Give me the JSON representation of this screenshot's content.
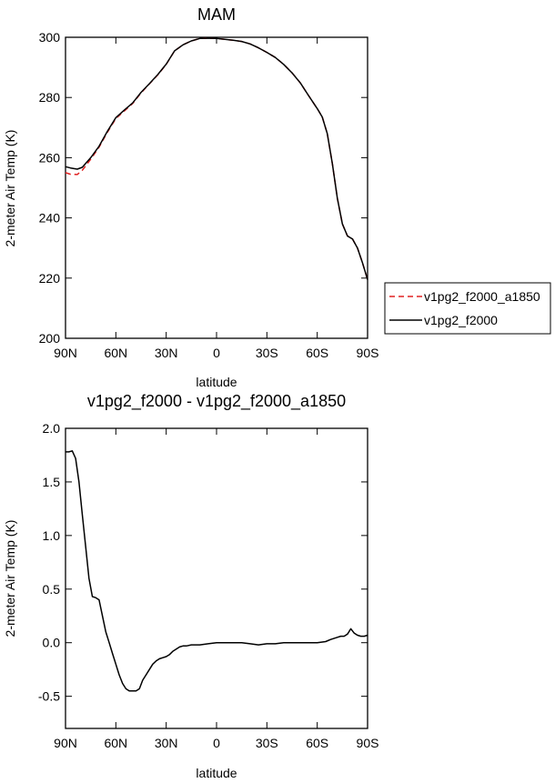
{
  "chart_data": [
    {
      "type": "line",
      "title": "MAM",
      "xlabel": "latitude",
      "ylabel": "2-meter Air Temp (K)",
      "xlim": [
        90,
        -90
      ],
      "ylim": [
        200,
        300
      ],
      "xticks": [
        90,
        60,
        30,
        0,
        -30,
        -60,
        -90
      ],
      "xtick_labels": [
        "90N",
        "60N",
        "30N",
        "0",
        "30S",
        "60S",
        "90S"
      ],
      "yticks": [
        200,
        220,
        240,
        260,
        280,
        300
      ],
      "ytick_labels": [
        "200",
        "220",
        "240",
        "260",
        "280",
        "300"
      ],
      "legend_position": "right",
      "series": [
        {
          "name": "v1pg2_f2000_a1850",
          "color": "#e02020",
          "style": "dashed",
          "points": [
            [
              90,
              255.0
            ],
            [
              87,
              254.5
            ],
            [
              83,
              254.4
            ],
            [
              80,
              255.8
            ],
            [
              75,
              259.5
            ],
            [
              70,
              263.5
            ],
            [
              65,
              268.5
            ],
            [
              60,
              273.0
            ],
            [
              55,
              275.5
            ],
            [
              50,
              278.0
            ],
            [
              45,
              281.5
            ],
            [
              40,
              284.5
            ],
            [
              35,
              287.5
            ],
            [
              30,
              291.0
            ],
            [
              25,
              295.5
            ],
            [
              20,
              297.5
            ],
            [
              15,
              298.8
            ],
            [
              10,
              299.6
            ],
            [
              5,
              299.7
            ],
            [
              0,
              299.6
            ],
            [
              -5,
              299.3
            ],
            [
              -10,
              299.0
            ],
            [
              -15,
              298.6
            ],
            [
              -20,
              297.8
            ],
            [
              -25,
              296.5
            ],
            [
              -30,
              295.0
            ],
            [
              -35,
              293.3
            ],
            [
              -40,
              291.0
            ],
            [
              -45,
              288.2
            ],
            [
              -50,
              284.8
            ],
            [
              -55,
              280.5
            ],
            [
              -60,
              276.3
            ],
            [
              -63,
              273.5
            ],
            [
              -66,
              268.0
            ],
            [
              -69,
              258.0
            ],
            [
              -72,
              246.5
            ],
            [
              -75,
              238.0
            ],
            [
              -78,
              234.0
            ],
            [
              -81,
              233.0
            ],
            [
              -84,
              230.0
            ],
            [
              -87,
              225.0
            ],
            [
              -90,
              219.5
            ]
          ]
        },
        {
          "name": "v1pg2_f2000",
          "color": "#000000",
          "style": "solid",
          "points": [
            [
              90,
              257.0
            ],
            [
              87,
              256.6
            ],
            [
              83,
              256.2
            ],
            [
              80,
              256.8
            ],
            [
              75,
              260.0
            ],
            [
              70,
              263.8
            ],
            [
              65,
              268.8
            ],
            [
              60,
              273.3
            ],
            [
              55,
              275.8
            ],
            [
              50,
              278.2
            ],
            [
              45,
              281.7
            ],
            [
              40,
              284.6
            ],
            [
              35,
              287.6
            ],
            [
              30,
              291.1
            ],
            [
              25,
              295.5
            ],
            [
              20,
              297.5
            ],
            [
              15,
              298.8
            ],
            [
              10,
              299.6
            ],
            [
              5,
              299.7
            ],
            [
              0,
              299.6
            ],
            [
              -5,
              299.3
            ],
            [
              -10,
              299.0
            ],
            [
              -15,
              298.6
            ],
            [
              -20,
              297.8
            ],
            [
              -25,
              296.5
            ],
            [
              -30,
              295.0
            ],
            [
              -35,
              293.3
            ],
            [
              -40,
              291.0
            ],
            [
              -45,
              288.2
            ],
            [
              -50,
              284.8
            ],
            [
              -55,
              280.5
            ],
            [
              -60,
              276.3
            ],
            [
              -63,
              273.5
            ],
            [
              -66,
              268.0
            ],
            [
              -69,
              258.0
            ],
            [
              -72,
              246.5
            ],
            [
              -75,
              238.0
            ],
            [
              -78,
              234.0
            ],
            [
              -81,
              233.0
            ],
            [
              -84,
              230.0
            ],
            [
              -87,
              225.0
            ],
            [
              -90,
              219.5
            ]
          ]
        }
      ]
    },
    {
      "type": "line",
      "title": "v1pg2_f2000 - v1pg2_f2000_a1850",
      "xlabel": "latitude",
      "ylabel": "2-meter Air Temp (K)",
      "xlim": [
        90,
        -90
      ],
      "ylim": [
        -0.8,
        2.0
      ],
      "xticks": [
        90,
        60,
        30,
        0,
        -30,
        -60,
        -90
      ],
      "xtick_labels": [
        "90N",
        "60N",
        "30N",
        "0",
        "30S",
        "60S",
        "90S"
      ],
      "yticks": [
        -0.5,
        0.0,
        0.5,
        1.0,
        1.5,
        2.0
      ],
      "ytick_labels": [
        "-0.5",
        "0.0",
        "0.5",
        "1.0",
        "1.5",
        "2.0"
      ],
      "series": [
        {
          "color": "#000000",
          "style": "solid",
          "points": [
            [
              90,
              1.78
            ],
            [
              88,
              1.78
            ],
            [
              86,
              1.79
            ],
            [
              84,
              1.72
            ],
            [
              82,
              1.5
            ],
            [
              80,
              1.2
            ],
            [
              78,
              0.9
            ],
            [
              76,
              0.6
            ],
            [
              74,
              0.43
            ],
            [
              72,
              0.42
            ],
            [
              70,
              0.4
            ],
            [
              68,
              0.25
            ],
            [
              66,
              0.1
            ],
            [
              64,
              0.0
            ],
            [
              62,
              -0.1
            ],
            [
              60,
              -0.2
            ],
            [
              58,
              -0.3
            ],
            [
              56,
              -0.38
            ],
            [
              54,
              -0.43
            ],
            [
              52,
              -0.45
            ],
            [
              50,
              -0.45
            ],
            [
              48,
              -0.45
            ],
            [
              46,
              -0.43
            ],
            [
              44,
              -0.35
            ],
            [
              42,
              -0.3
            ],
            [
              40,
              -0.25
            ],
            [
              38,
              -0.2
            ],
            [
              36,
              -0.17
            ],
            [
              34,
              -0.15
            ],
            [
              32,
              -0.14
            ],
            [
              30,
              -0.13
            ],
            [
              28,
              -0.11
            ],
            [
              26,
              -0.08
            ],
            [
              24,
              -0.06
            ],
            [
              22,
              -0.04
            ],
            [
              20,
              -0.03
            ],
            [
              18,
              -0.03
            ],
            [
              15,
              -0.02
            ],
            [
              10,
              -0.02
            ],
            [
              5,
              -0.01
            ],
            [
              0,
              0.0
            ],
            [
              -5,
              0.0
            ],
            [
              -10,
              0.0
            ],
            [
              -15,
              0.0
            ],
            [
              -20,
              -0.01
            ],
            [
              -25,
              -0.02
            ],
            [
              -30,
              -0.01
            ],
            [
              -35,
              -0.01
            ],
            [
              -40,
              0.0
            ],
            [
              -45,
              0.0
            ],
            [
              -50,
              0.0
            ],
            [
              -55,
              0.0
            ],
            [
              -60,
              0.0
            ],
            [
              -65,
              0.01
            ],
            [
              -68,
              0.03
            ],
            [
              -72,
              0.05
            ],
            [
              -74,
              0.06
            ],
            [
              -76,
              0.06
            ],
            [
              -78,
              0.08
            ],
            [
              -80,
              0.13
            ],
            [
              -82,
              0.09
            ],
            [
              -84,
              0.07
            ],
            [
              -86,
              0.06
            ],
            [
              -88,
              0.06
            ],
            [
              -90,
              0.07
            ]
          ]
        }
      ]
    }
  ]
}
